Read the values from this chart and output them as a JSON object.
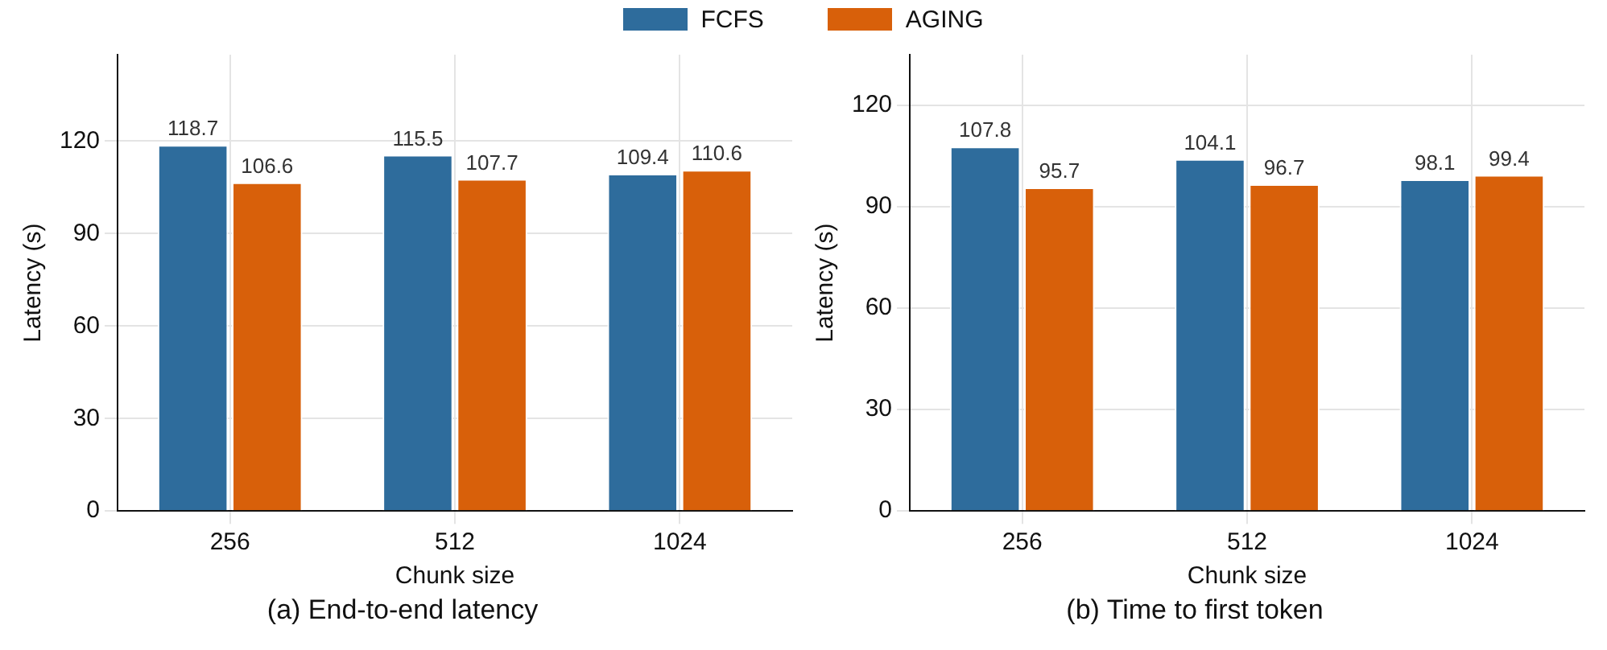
{
  "chart_data": [
    {
      "type": "bar",
      "title": "(a) End-to-end latency",
      "xlabel": "Chunk size",
      "ylabel": "Latency (s)",
      "categories": [
        "256",
        "512",
        "1024"
      ],
      "series": [
        {
          "name": "FCFS",
          "color": "#2e6c9c",
          "values": [
            118.7,
            115.5,
            109.4
          ]
        },
        {
          "name": "AGING",
          "color": "#d8600a",
          "values": [
            106.6,
            107.7,
            110.6
          ]
        }
      ],
      "ylim": [
        0,
        148
      ],
      "yticks": [
        0,
        30,
        60,
        90,
        120
      ],
      "grid": true,
      "legend": "top",
      "data_labels": true
    },
    {
      "type": "bar",
      "title": "(b) Time to first token",
      "xlabel": "Chunk size",
      "ylabel": "Latency (s)",
      "categories": [
        "256",
        "512",
        "1024"
      ],
      "series": [
        {
          "color": "#2e6c9c",
          "values": [
            107.8,
            104.1,
            98.1
          ]
        },
        {
          "color": "#d8600a",
          "values": [
            95.7,
            96.7,
            99.4
          ]
        }
      ],
      "ylim": [
        0,
        135
      ],
      "yticks": [
        0,
        30,
        60,
        90,
        120
      ],
      "grid": true,
      "data_labels": true
    }
  ]
}
